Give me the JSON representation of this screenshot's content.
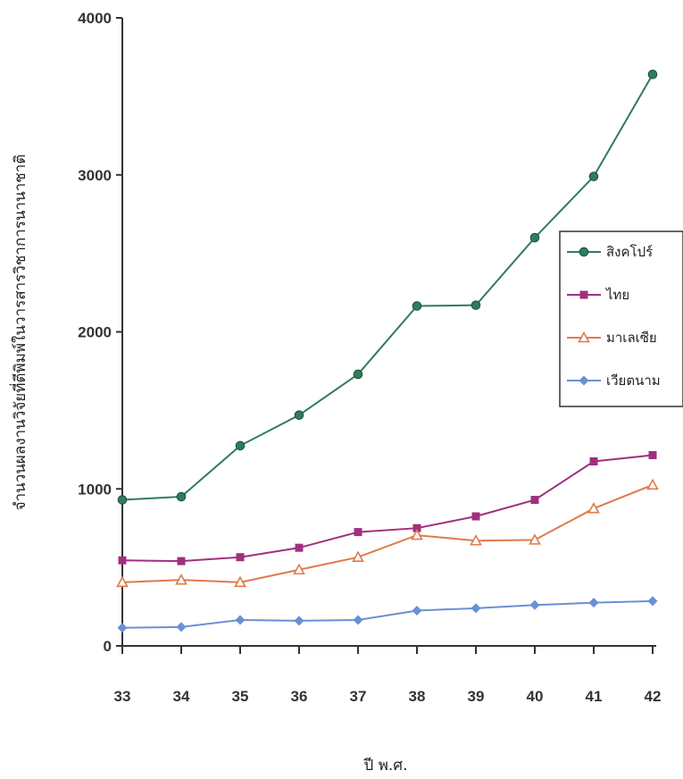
{
  "chart_data": {
    "type": "line",
    "xlabel": "ปี พ.ศ.",
    "ylabel": "จำนวนผลงานวิจัยที่ตีพิมพ์ในวารสารวิชาการนานาชาติ",
    "x": [
      "33",
      "34",
      "35",
      "36",
      "37",
      "38",
      "39",
      "40",
      "41",
      "42"
    ],
    "ylim": [
      0,
      4000
    ],
    "yticks": [
      "0",
      "1000",
      "2000",
      "3000",
      "4000"
    ],
    "grid": false,
    "legend_position": "right",
    "series": [
      {
        "name": "สิงคโปร์",
        "color": "#2e7d5b",
        "marker": "circle",
        "values": [
          930,
          950,
          1275,
          1470,
          1730,
          2165,
          2170,
          2600,
          2990,
          3640
        ]
      },
      {
        "name": "ไทย",
        "color": "#a0307f",
        "marker": "square",
        "values": [
          545,
          540,
          565,
          625,
          725,
          750,
          825,
          930,
          1175,
          1215
        ]
      },
      {
        "name": "มาเลเซีย",
        "color": "#e07a4a",
        "marker": "triangle",
        "values": [
          405,
          420,
          405,
          485,
          565,
          705,
          670,
          675,
          875,
          1025
        ]
      },
      {
        "name": "เวียตนาม",
        "color": "#6b8fd4",
        "marker": "diamond",
        "values": [
          115,
          120,
          165,
          160,
          165,
          225,
          240,
          260,
          275,
          285
        ]
      }
    ]
  }
}
